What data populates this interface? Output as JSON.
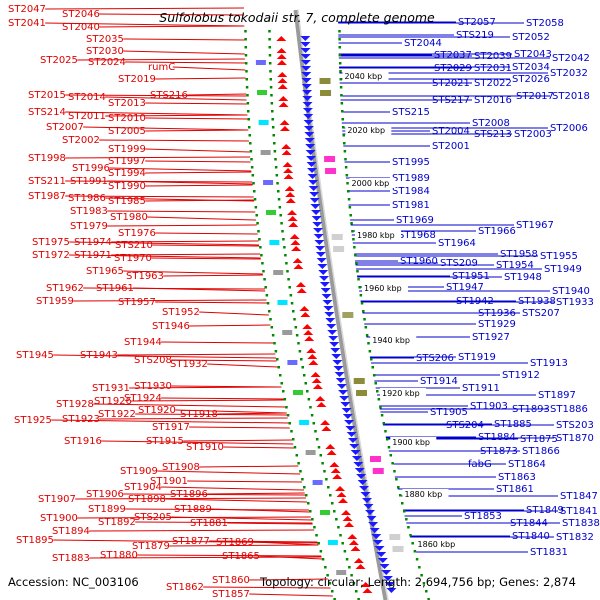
{
  "title": "Sulfolobus tokodaii str. 7, complete genome",
  "accession": "Accession: NC_003106",
  "topology": "Topology: circular; Length: 2,694,756 bp; Genes: 2,874",
  "colors": {
    "left_genes": "#e00000",
    "right_genes": "#0000cc",
    "backbone": "#888888",
    "ticks": "#008800"
  },
  "ruler": [
    {
      "label": "2040 kbp"
    },
    {
      "label": "2020 kbp"
    },
    {
      "label": "2000 kbp"
    },
    {
      "label": "1980 kbp"
    },
    {
      "label": "1960 kbp"
    },
    {
      "label": "1940 kbp"
    },
    {
      "label": "1920 kbp"
    },
    {
      "label": "1900 kbp"
    },
    {
      "label": "1880 kbp"
    },
    {
      "label": "1860 kbp"
    }
  ],
  "left_genes": [
    {
      "label": "ST2047"
    },
    {
      "label": "ST2046"
    },
    {
      "label": "ST2041"
    },
    {
      "label": "ST2040"
    },
    {
      "label": "ST2035"
    },
    {
      "label": "ST2030"
    },
    {
      "label": "ST2025"
    },
    {
      "label": "ST2024"
    },
    {
      "label": "rumC"
    },
    {
      "label": "ST2019"
    },
    {
      "label": "ST2015"
    },
    {
      "label": "ST2014"
    },
    {
      "label": "STS216"
    },
    {
      "label": "ST2013"
    },
    {
      "label": "STS214"
    },
    {
      "label": "ST2011"
    },
    {
      "label": "ST2010"
    },
    {
      "label": "ST2007"
    },
    {
      "label": "ST2005"
    },
    {
      "label": "ST2002"
    },
    {
      "label": "ST1999"
    },
    {
      "label": "ST1998"
    },
    {
      "label": "ST1997"
    },
    {
      "label": "ST1996"
    },
    {
      "label": "ST1994"
    },
    {
      "label": "STS211"
    },
    {
      "label": "ST1991"
    },
    {
      "label": "ST1990"
    },
    {
      "label": "ST1987"
    },
    {
      "label": "ST1986"
    },
    {
      "label": "ST1985"
    },
    {
      "label": "ST1983"
    },
    {
      "label": "ST1980"
    },
    {
      "label": "ST1979"
    },
    {
      "label": "ST1976"
    },
    {
      "label": "ST1975"
    },
    {
      "label": "ST1974"
    },
    {
      "label": "STS210"
    },
    {
      "label": "ST1972"
    },
    {
      "label": "ST1971"
    },
    {
      "label": "ST1970"
    },
    {
      "label": "ST1965"
    },
    {
      "label": "ST1963"
    },
    {
      "label": "ST1962"
    },
    {
      "label": "ST1961"
    },
    {
      "label": "ST1959"
    },
    {
      "label": "ST1957"
    },
    {
      "label": "ST1952"
    },
    {
      "label": "ST1946"
    },
    {
      "label": "ST1944"
    },
    {
      "label": "ST1945"
    },
    {
      "label": "ST1943"
    },
    {
      "label": "STS208"
    },
    {
      "label": "ST1932"
    },
    {
      "label": "ST1931"
    },
    {
      "label": "ST1930"
    },
    {
      "label": "ST1928"
    },
    {
      "label": "ST1926"
    },
    {
      "label": "ST1924"
    },
    {
      "label": "ST1925"
    },
    {
      "label": "ST1923"
    },
    {
      "label": "ST1922"
    },
    {
      "label": "ST1920"
    },
    {
      "label": "ST1918"
    },
    {
      "label": "ST1917"
    },
    {
      "label": "ST1916"
    },
    {
      "label": "ST1915"
    },
    {
      "label": "ST1910"
    },
    {
      "label": "ST1909"
    },
    {
      "label": "ST1908"
    },
    {
      "label": "ST1901"
    },
    {
      "label": "ST1904"
    },
    {
      "label": "ST1907"
    },
    {
      "label": "ST1906"
    },
    {
      "label": "ST1898"
    },
    {
      "label": "ST1896"
    },
    {
      "label": "ST1899"
    },
    {
      "label": "ST1889"
    },
    {
      "label": "ST1900"
    },
    {
      "label": "ST1892"
    },
    {
      "label": "STS205"
    },
    {
      "label": "ST1894"
    },
    {
      "label": "ST1881"
    },
    {
      "label": "ST1895"
    },
    {
      "label": "ST1879"
    },
    {
      "label": "ST1877"
    },
    {
      "label": "ST1869"
    },
    {
      "label": "ST1883"
    },
    {
      "label": "ST1880"
    },
    {
      "label": "ST1865"
    },
    {
      "label": "ST1860"
    },
    {
      "label": "ST1862"
    },
    {
      "label": "ST1857"
    }
  ],
  "right_genes": [
    {
      "label": "ST2057"
    },
    {
      "label": "ST2058"
    },
    {
      "label": "STS219"
    },
    {
      "label": "ST2052"
    },
    {
      "label": "ST2044"
    },
    {
      "label": "ST2037"
    },
    {
      "label": "ST2039"
    },
    {
      "label": "ST2043"
    },
    {
      "label": "ST2042"
    },
    {
      "label": "ST2029"
    },
    {
      "label": "ST2031"
    },
    {
      "label": "ST2034"
    },
    {
      "label": "ST2032"
    },
    {
      "label": "ST2026"
    },
    {
      "label": "ST2021"
    },
    {
      "label": "ST2022"
    },
    {
      "label": "STS217"
    },
    {
      "label": "ST2016"
    },
    {
      "label": "ST2017"
    },
    {
      "label": "ST2018"
    },
    {
      "label": "STS215"
    },
    {
      "label": "ST2008"
    },
    {
      "label": "ST2004"
    },
    {
      "label": "STS213"
    },
    {
      "label": "ST2003"
    },
    {
      "label": "ST2006"
    },
    {
      "label": "ST2001"
    },
    {
      "label": "ST1995"
    },
    {
      "label": "ST1989"
    },
    {
      "label": "ST1984"
    },
    {
      "label": "ST1981"
    },
    {
      "label": "ST1969"
    },
    {
      "label": "ST1968"
    },
    {
      "label": "ST1966"
    },
    {
      "label": "ST1967"
    },
    {
      "label": "ST1964"
    },
    {
      "label": "ST1958"
    },
    {
      "label": "ST1955"
    },
    {
      "label": "ST1960"
    },
    {
      "label": "STS209"
    },
    {
      "label": "ST1954"
    },
    {
      "label": "ST1949"
    },
    {
      "label": "ST1951"
    },
    {
      "label": "ST1948"
    },
    {
      "label": "ST1947"
    },
    {
      "label": "ST1940"
    },
    {
      "label": "ST1942"
    },
    {
      "label": "ST1938"
    },
    {
      "label": "ST1933"
    },
    {
      "label": "ST1936"
    },
    {
      "label": "STS207"
    },
    {
      "label": "ST1929"
    },
    {
      "label": "ST1927"
    },
    {
      "label": "STS206"
    },
    {
      "label": "ST1919"
    },
    {
      "label": "ST1913"
    },
    {
      "label": "ST1912"
    },
    {
      "label": "ST1914"
    },
    {
      "label": "ST1911"
    },
    {
      "label": "ST1897"
    },
    {
      "label": "ST1903"
    },
    {
      "label": "ST1893"
    },
    {
      "label": "ST1886"
    },
    {
      "label": "ST1905"
    },
    {
      "label": "STS204"
    },
    {
      "label": "ST1885"
    },
    {
      "label": "STS203"
    },
    {
      "label": "ST1884"
    },
    {
      "label": "ST1875"
    },
    {
      "label": "ST1870"
    },
    {
      "label": "ST1873"
    },
    {
      "label": "ST1866"
    },
    {
      "label": "fabG"
    },
    {
      "label": "ST1864"
    },
    {
      "label": "ST1863"
    },
    {
      "label": "ST1861"
    },
    {
      "label": "ST1847"
    },
    {
      "label": "ST1849"
    },
    {
      "label": "ST1841"
    },
    {
      "label": "ST1853"
    },
    {
      "label": "ST1844"
    },
    {
      "label": "ST1838"
    },
    {
      "label": "ST1840"
    },
    {
      "label": "ST1832"
    },
    {
      "label": "ST1831"
    }
  ]
}
